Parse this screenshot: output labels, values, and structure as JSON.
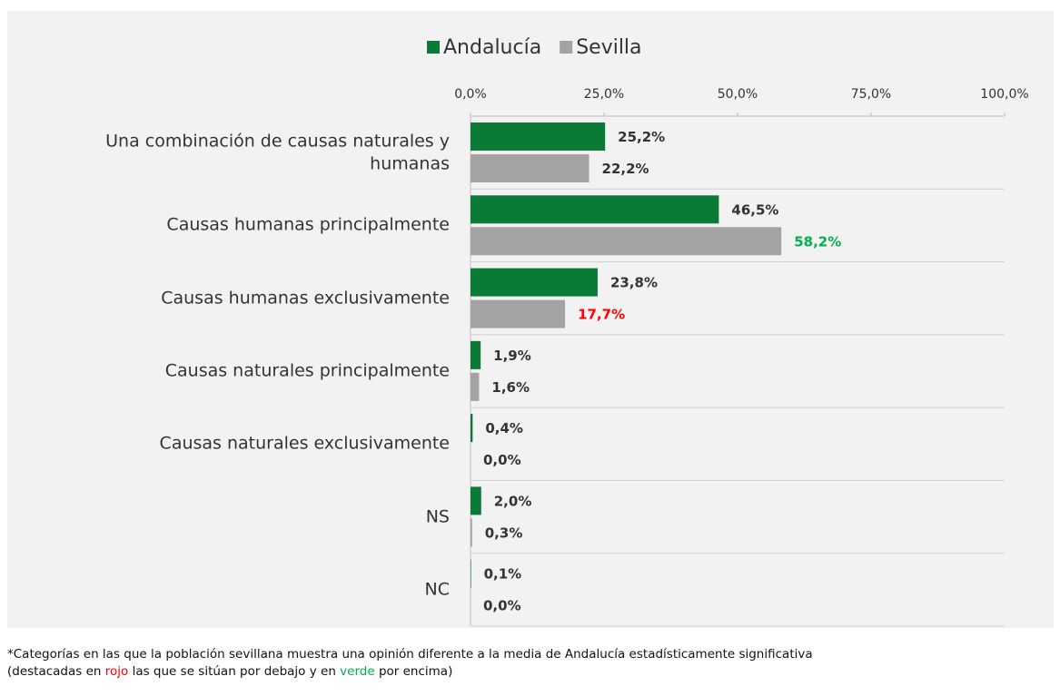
{
  "chart_data": {
    "type": "barh",
    "categories": [
      "Una combinación de causas naturales y humanas",
      "Causas humanas principalmente",
      "Causas humanas exclusivamente",
      "Causas naturales principalmente",
      "Causas naturales exclusivamente",
      "NS",
      "NC"
    ],
    "series": [
      {
        "name": "Andalucía",
        "color": "#0b7a36",
        "values": [
          25.2,
          46.5,
          23.8,
          1.9,
          0.4,
          2.0,
          0.1
        ],
        "value_labels": [
          "25,2%",
          "46,5%",
          "23,8%",
          "1,9%",
          "0,4%",
          "2,0%",
          "0,1%"
        ],
        "value_label_colors": [
          "#333333",
          "#333333",
          "#333333",
          "#333333",
          "#333333",
          "#333333",
          "#333333"
        ]
      },
      {
        "name": "Sevilla",
        "color": "#a3a3a3",
        "values": [
          22.2,
          58.2,
          17.7,
          1.6,
          0.0,
          0.3,
          0.0
        ],
        "value_labels": [
          "22,2%",
          "58,2%",
          "17,7%",
          "1,6%",
          "0,0%",
          "0,3%",
          "0,0%"
        ],
        "value_label_colors": [
          "#333333",
          "#00b050",
          "#ff0000",
          "#333333",
          "#333333",
          "#333333",
          "#333333"
        ]
      }
    ],
    "xlim": [
      0,
      100
    ],
    "xticks": [
      {
        "value": 0,
        "label": "0,0%"
      },
      {
        "value": 25,
        "label": "25,0%"
      },
      {
        "value": 50,
        "label": "50,0%"
      },
      {
        "value": 75,
        "label": "75,0%"
      },
      {
        "value": 100,
        "label": "100,0%"
      }
    ],
    "grid": true,
    "legend": "top",
    "footnote": [
      "*Categorías en las que la población sevillana muestra una opinión diferente a la media de Andalucía estadísticamente significativa",
      "(destacadas en ",
      "rojo",
      " las que se sitúan por debajo y en ",
      "verde",
      " por encima)"
    ]
  }
}
